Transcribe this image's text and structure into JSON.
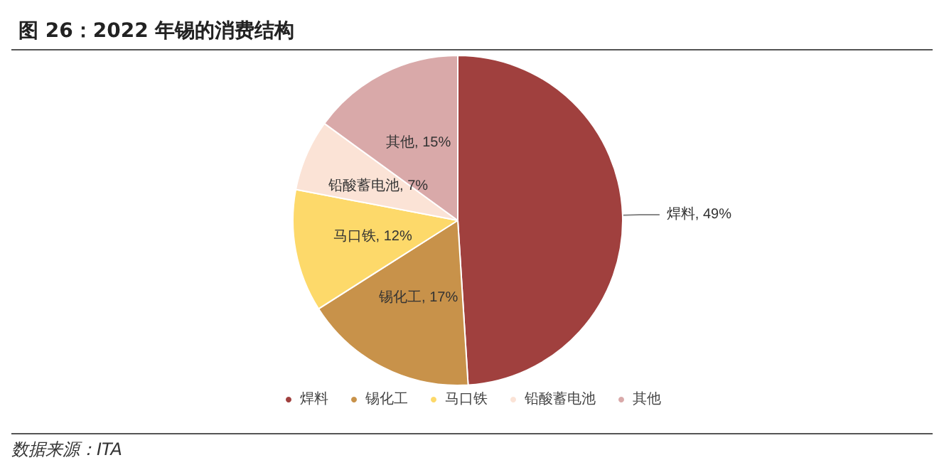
{
  "chart_data": {
    "type": "pie",
    "title": "图 26：2022 年锡的消费结构",
    "categories": [
      "焊料",
      "锡化工",
      "马口铁",
      "铅酸蓄电池",
      "其他"
    ],
    "values": [
      49,
      17,
      12,
      7,
      15
    ],
    "value_labels": [
      "焊料, 49%",
      "锡化工, 17%",
      "马口铁, 12%",
      "铅酸蓄电池, 7%",
      "其他, 15%"
    ],
    "colors": [
      "#a0403e",
      "#c8924a",
      "#fdd96a",
      "#fbe3d6",
      "#d9a9a9"
    ],
    "legend": "bottom",
    "annotations": [
      "数据来源：ITA"
    ]
  }
}
